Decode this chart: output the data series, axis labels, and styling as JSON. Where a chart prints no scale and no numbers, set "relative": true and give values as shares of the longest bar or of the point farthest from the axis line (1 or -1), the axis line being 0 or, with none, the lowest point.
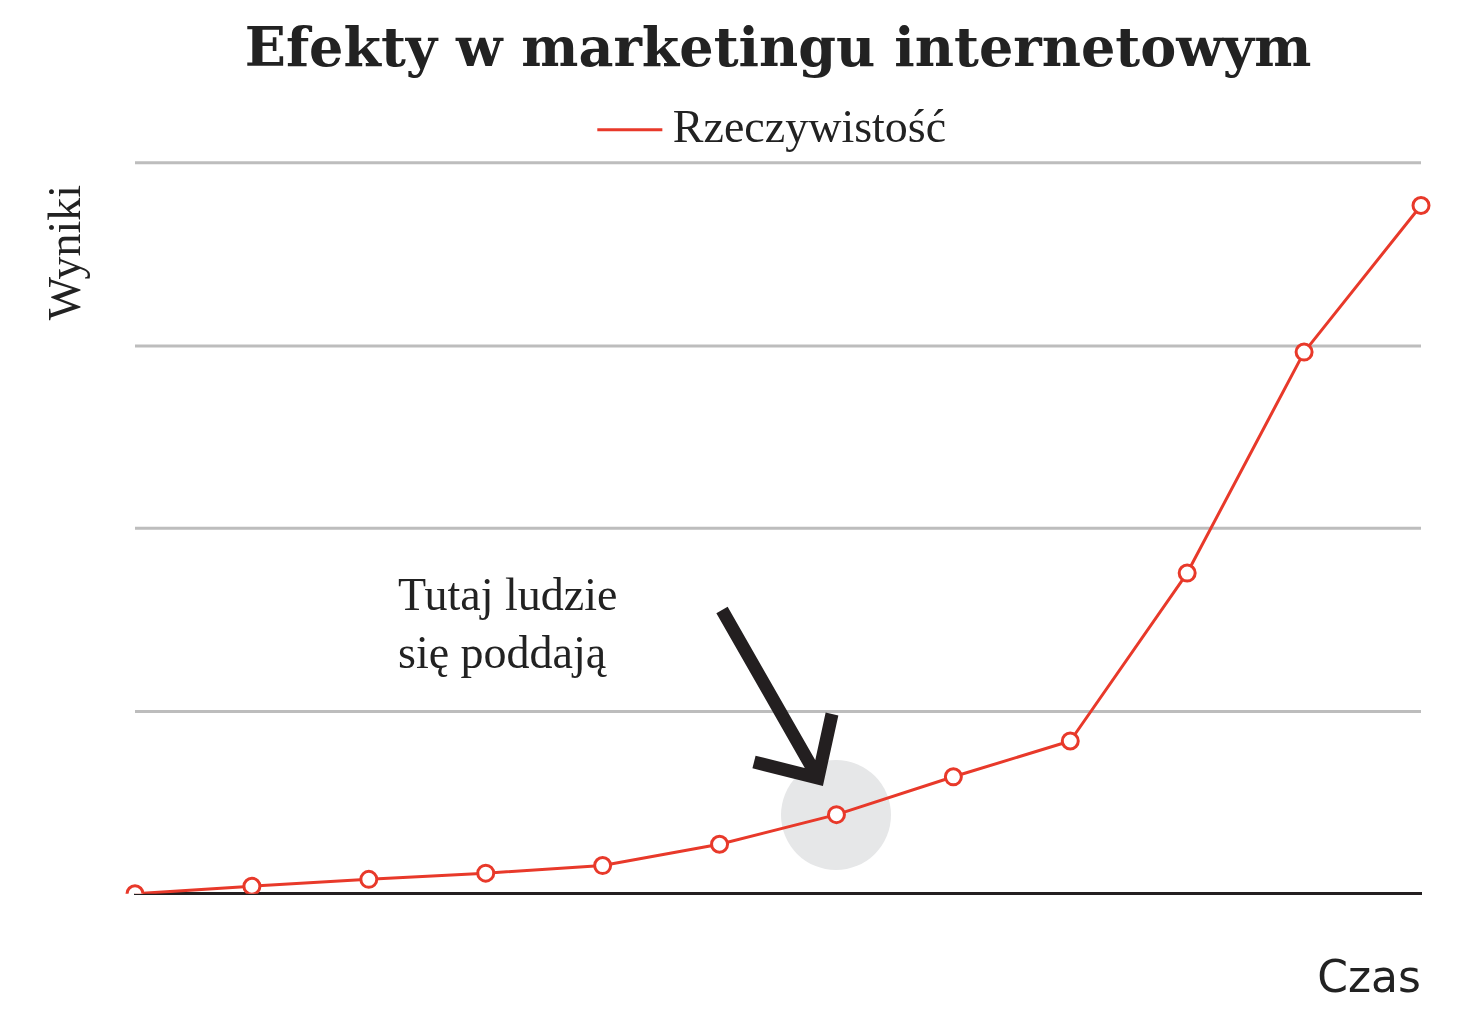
{
  "chart_data": {
    "type": "line",
    "title": "Efekty w marketingu internetowym",
    "xlabel": "Czas",
    "ylabel": "Wyniki",
    "relative": true,
    "categories": [
      null,
      null,
      null,
      null,
      null,
      null,
      null,
      null,
      null,
      null,
      null,
      null
    ],
    "series": [
      {
        "name": "Rzeczywistość",
        "color": "#e8392a",
        "values": [
          0,
          0.011,
          0.021,
          0.03,
          0.041,
          0.072,
          0.115,
          0.17,
          0.222,
          0.466,
          0.787,
          1
        ]
      }
    ],
    "ref_lines": [
      {
        "axis": "y",
        "value": 0.265,
        "color": "#bdbdbd"
      },
      {
        "axis": "y",
        "value": 0.531,
        "color": "#bdbdbd"
      },
      {
        "axis": "y",
        "value": 0.796,
        "color": "#bdbdbd"
      },
      {
        "axis": "y",
        "value": 1.062,
        "color": "#bdbdbd"
      }
    ],
    "annotations": [
      "Tutaj ludzie\nsię poddają"
    ],
    "legend": "top",
    "marker": "circle",
    "line_style": "solid"
  }
}
